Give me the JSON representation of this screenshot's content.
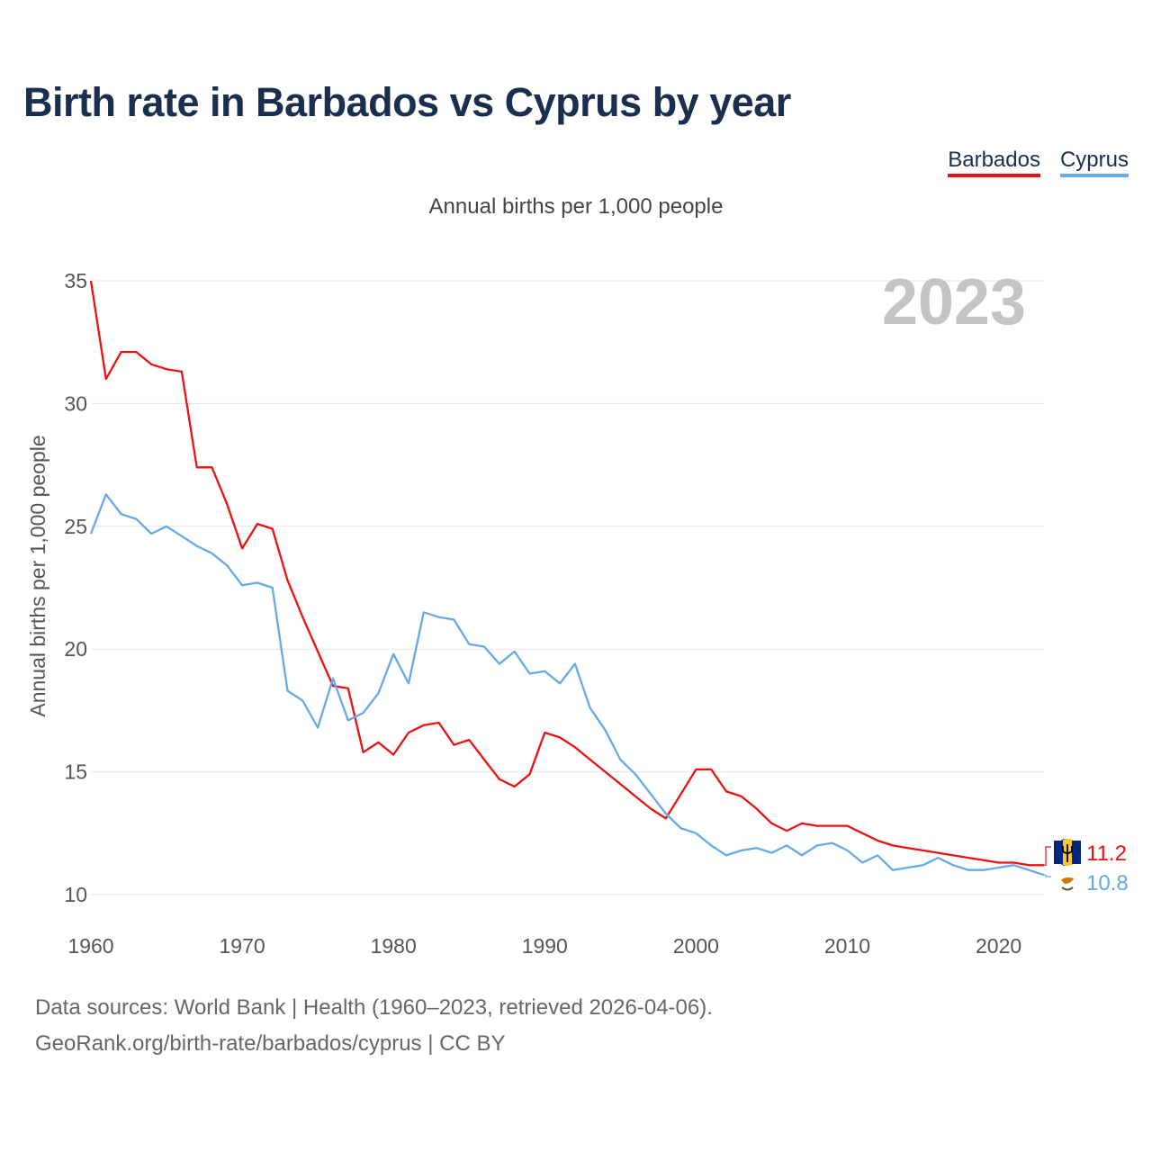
{
  "title": "Birth rate in Barbados vs Cyprus by year",
  "subtitle": "Annual births per 1,000 people",
  "legend": [
    {
      "label": "Barbados",
      "color": "#ee1111"
    },
    {
      "label": "Cyprus",
      "color": "#66a9e8"
    }
  ],
  "year_watermark": "2023",
  "sources": {
    "line1": "Data sources: World Bank | Health (1960–2023, retrieved 2026-04-06).",
    "line2": "GeoRank.org/birth-rate/barbados/cyprus | CC BY"
  },
  "flags": {
    "barbados": "barbados-flag-icon",
    "cyprus": "cyprus-flag-icon"
  },
  "chart_data": {
    "type": "line",
    "title": "Birth rate in Barbados vs Cyprus by year",
    "xlabel": "",
    "ylabel": "Annual births per 1,000 people",
    "xlim": [
      1960,
      2023
    ],
    "ylim": [
      10,
      35
    ],
    "x_ticks": [
      1960,
      1970,
      1980,
      1990,
      2000,
      2010,
      2020
    ],
    "y_ticks": [
      10,
      15,
      20,
      25,
      30,
      35
    ],
    "grid": true,
    "legend_position": "top-right",
    "x": [
      1960,
      1961,
      1962,
      1963,
      1964,
      1965,
      1966,
      1967,
      1968,
      1969,
      1970,
      1971,
      1972,
      1973,
      1974,
      1975,
      1976,
      1977,
      1978,
      1979,
      1980,
      1981,
      1982,
      1983,
      1984,
      1985,
      1986,
      1987,
      1988,
      1989,
      1990,
      1991,
      1992,
      1993,
      1994,
      1995,
      1996,
      1997,
      1998,
      1999,
      2000,
      2001,
      2002,
      2003,
      2004,
      2005,
      2006,
      2007,
      2008,
      2009,
      2010,
      2011,
      2012,
      2013,
      2014,
      2015,
      2016,
      2017,
      2018,
      2019,
      2020,
      2021,
      2022,
      2023
    ],
    "series": [
      {
        "name": "Barbados",
        "color": "#ee1111",
        "end_label": "11.2",
        "values": [
          35.0,
          31.0,
          32.1,
          32.1,
          31.6,
          31.4,
          31.3,
          27.4,
          27.4,
          25.9,
          24.1,
          25.1,
          24.9,
          22.8,
          21.3,
          19.9,
          18.5,
          18.4,
          15.8,
          16.2,
          15.7,
          16.6,
          16.9,
          17.0,
          16.1,
          16.3,
          15.5,
          14.7,
          14.4,
          14.9,
          16.6,
          16.4,
          16.0,
          15.5,
          15.0,
          14.5,
          14.0,
          13.5,
          13.1,
          14.1,
          15.1,
          15.1,
          14.2,
          14.0,
          13.5,
          12.9,
          12.6,
          12.9,
          12.8,
          12.8,
          12.8,
          12.5,
          12.2,
          12.0,
          11.9,
          11.8,
          11.7,
          11.6,
          11.5,
          11.4,
          11.3,
          11.3,
          11.2,
          11.2
        ]
      },
      {
        "name": "Cyprus",
        "color": "#66a9e8",
        "end_label": "10.8",
        "values": [
          24.7,
          26.3,
          25.5,
          25.3,
          24.7,
          25.0,
          24.6,
          24.2,
          23.9,
          23.4,
          22.6,
          22.7,
          22.5,
          18.3,
          17.9,
          16.8,
          18.8,
          17.1,
          17.4,
          18.2,
          19.8,
          18.6,
          21.5,
          21.3,
          21.2,
          20.2,
          20.1,
          19.4,
          19.9,
          19.0,
          19.1,
          18.6,
          19.4,
          17.6,
          16.7,
          15.5,
          14.9,
          14.1,
          13.3,
          12.7,
          12.5,
          12.0,
          11.6,
          11.8,
          11.9,
          11.7,
          12.0,
          11.6,
          12.0,
          12.1,
          11.8,
          11.3,
          11.6,
          11.0,
          11.1,
          11.2,
          11.5,
          11.2,
          11.0,
          11.0,
          11.1,
          11.2,
          11.0,
          10.8
        ]
      }
    ]
  }
}
